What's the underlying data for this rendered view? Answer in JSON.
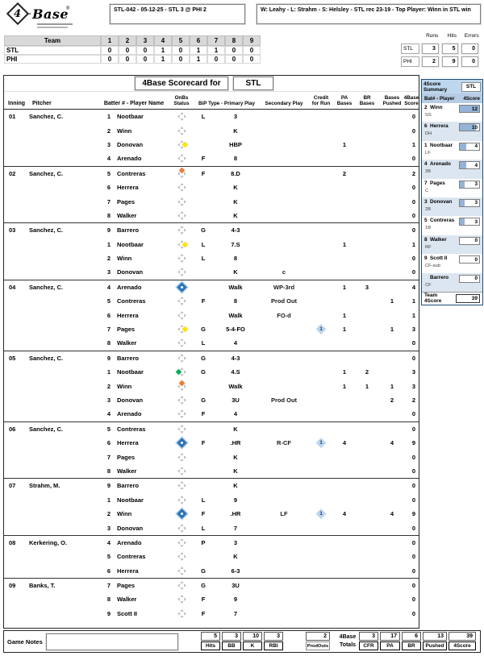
{
  "header": {
    "logo": {
      "number": "4",
      "word": "Base",
      "reg": "®"
    },
    "game_info": "STL-042 - 05-12-25 - STL 3 @ PHI 2",
    "result_info": "W: Leahy - L: Strahm - S: Helsley - STL rec 23-19 - Top Player: Winn in STL win"
  },
  "linescore": {
    "team_col": "Team",
    "innings": [
      "1",
      "2",
      "3",
      "4",
      "5",
      "6",
      "7",
      "8",
      "9"
    ],
    "rows": [
      {
        "team": "STL",
        "scores": [
          "0",
          "0",
          "0",
          "1",
          "0",
          "1",
          "1",
          "0",
          "0"
        ]
      },
      {
        "team": "PHI",
        "scores": [
          "0",
          "0",
          "0",
          "1",
          "0",
          "1",
          "0",
          "0",
          "0"
        ]
      }
    ]
  },
  "rhe": {
    "headers": [
      "Runs",
      "Hits",
      "Errors"
    ],
    "rows": [
      {
        "team": "STL",
        "values": [
          "3",
          "5",
          "0"
        ]
      },
      {
        "team": "PHI",
        "values": [
          "2",
          "9",
          "0"
        ]
      }
    ]
  },
  "scorecard": {
    "title": "4Base Scorecard for",
    "team": "STL",
    "columns": {
      "inning": "Inning",
      "pitcher": "Pitcher",
      "batter": "Batter # - Player Name",
      "onbs": "OnBs Status",
      "bip": "BiP Type - Primary Play",
      "secondary": "Secondary Play",
      "cfr": "Credit\nfor Run",
      "pa": "PA\nBases",
      "br": "BR\nBases",
      "pushed": "Bases\nPushed",
      "score": "4Base\nScore"
    },
    "innings": [
      {
        "inning": "01",
        "pitcher": "Sanchez, C.",
        "batters": [
          {
            "num": "1",
            "name": "Nootbaar",
            "onbs": "none",
            "bip": "L",
            "primary": "3",
            "secondary": "",
            "cfr": "",
            "pa": "",
            "br": "",
            "pushed": "",
            "score": "0"
          },
          {
            "num": "2",
            "name": "Winn",
            "onbs": "none",
            "bip": "",
            "primary": "K",
            "secondary": "",
            "cfr": "",
            "pa": "",
            "br": "",
            "pushed": "",
            "score": "0"
          },
          {
            "num": "3",
            "name": "Donovan",
            "onbs": "first",
            "bip": "",
            "primary": "HBP",
            "secondary": "",
            "cfr": "",
            "pa": "1",
            "br": "",
            "pushed": "",
            "score": "1"
          },
          {
            "num": "4",
            "name": "Arenado",
            "onbs": "none",
            "bip": "F",
            "primary": "8",
            "secondary": "",
            "cfr": "",
            "pa": "",
            "br": "",
            "pushed": "",
            "score": "0"
          }
        ]
      },
      {
        "inning": "02",
        "pitcher": "Sanchez, C.",
        "batters": [
          {
            "num": "5",
            "name": "Contreras",
            "onbs": "second",
            "bip": "F",
            "primary": "8.D",
            "secondary": "",
            "cfr": "",
            "pa": "2",
            "br": "",
            "pushed": "",
            "score": "2"
          },
          {
            "num": "6",
            "name": "Herrera",
            "onbs": "none",
            "bip": "",
            "primary": "K",
            "secondary": "",
            "cfr": "",
            "pa": "",
            "br": "",
            "pushed": "",
            "score": "0"
          },
          {
            "num": "7",
            "name": "Pages",
            "onbs": "none",
            "bip": "",
            "primary": "K",
            "secondary": "",
            "cfr": "",
            "pa": "",
            "br": "",
            "pushed": "",
            "score": "0"
          },
          {
            "num": "8",
            "name": "Walker",
            "onbs": "none",
            "bip": "",
            "primary": "K",
            "secondary": "",
            "cfr": "",
            "pa": "",
            "br": "",
            "pushed": "",
            "score": "0"
          }
        ]
      },
      {
        "inning": "03",
        "pitcher": "Sanchez, C.",
        "batters": [
          {
            "num": "9",
            "name": "Barrero",
            "onbs": "none",
            "bip": "G",
            "primary": "4-3",
            "secondary": "",
            "cfr": "",
            "pa": "",
            "br": "",
            "pushed": "",
            "score": "0"
          },
          {
            "num": "1",
            "name": "Nootbaar",
            "onbs": "first",
            "bip": "L",
            "primary": "7.S",
            "secondary": "",
            "cfr": "",
            "pa": "1",
            "br": "",
            "pushed": "",
            "score": "1"
          },
          {
            "num": "2",
            "name": "Winn",
            "onbs": "none",
            "bip": "L",
            "primary": "8",
            "secondary": "",
            "cfr": "",
            "pa": "",
            "br": "",
            "pushed": "",
            "score": "0"
          },
          {
            "num": "3",
            "name": "Donovan",
            "onbs": "none",
            "bip": "",
            "primary": "K",
            "secondary": "c",
            "cfr": "",
            "pa": "",
            "br": "",
            "pushed": "",
            "score": "0"
          }
        ]
      },
      {
        "inning": "04",
        "pitcher": "Sanchez, C.",
        "batters": [
          {
            "num": "4",
            "name": "Arenado",
            "onbs": "scored",
            "bip": "",
            "primary": "Walk",
            "secondary": "WP-3rd",
            "cfr": "",
            "pa": "1",
            "br": "3",
            "pushed": "",
            "score": "4"
          },
          {
            "num": "5",
            "name": "Contreras",
            "onbs": "none",
            "bip": "F",
            "primary": "8",
            "secondary": "Prod Out",
            "cfr": "",
            "pa": "",
            "br": "",
            "pushed": "1",
            "score": "1"
          },
          {
            "num": "6",
            "name": "Herrera",
            "onbs": "none",
            "bip": "",
            "primary": "Walk",
            "secondary": "FO-d",
            "cfr": "",
            "pa": "1",
            "br": "",
            "pushed": "",
            "score": "1"
          },
          {
            "num": "7",
            "name": "Pages",
            "onbs": "first",
            "bip": "G",
            "primary": "5-4-FO",
            "secondary": "",
            "cfr": "1",
            "pa": "1",
            "br": "",
            "pushed": "1",
            "score": "3"
          },
          {
            "num": "8",
            "name": "Walker",
            "onbs": "none",
            "bip": "L",
            "primary": "4",
            "secondary": "",
            "cfr": "",
            "pa": "",
            "br": "",
            "pushed": "",
            "score": "0"
          }
        ]
      },
      {
        "inning": "05",
        "pitcher": "Sanchez, C.",
        "batters": [
          {
            "num": "9",
            "name": "Barrero",
            "onbs": "none",
            "bip": "G",
            "primary": "4-3",
            "secondary": "",
            "cfr": "",
            "pa": "",
            "br": "",
            "pushed": "",
            "score": "0"
          },
          {
            "num": "1",
            "name": "Nootbaar",
            "onbs": "third",
            "bip": "G",
            "primary": "4.S",
            "secondary": "",
            "cfr": "",
            "pa": "1",
            "br": "2",
            "pushed": "",
            "score": "3"
          },
          {
            "num": "2",
            "name": "Winn",
            "onbs": "second",
            "bip": "",
            "primary": "Walk",
            "secondary": "",
            "cfr": "",
            "pa": "1",
            "br": "1",
            "pushed": "1",
            "score": "3"
          },
          {
            "num": "3",
            "name": "Donovan",
            "onbs": "none",
            "bip": "G",
            "primary": "3U",
            "secondary": "Prod Out",
            "cfr": "",
            "pa": "",
            "br": "",
            "pushed": "2",
            "score": "2"
          },
          {
            "num": "4",
            "name": "Arenado",
            "onbs": "none",
            "bip": "F",
            "primary": "4",
            "secondary": "",
            "cfr": "",
            "pa": "",
            "br": "",
            "pushed": "",
            "score": "0"
          }
        ]
      },
      {
        "inning": "06",
        "pitcher": "Sanchez, C.",
        "batters": [
          {
            "num": "5",
            "name": "Contreras",
            "onbs": "none",
            "bip": "",
            "primary": "K",
            "secondary": "",
            "cfr": "",
            "pa": "",
            "br": "",
            "pushed": "",
            "score": "0"
          },
          {
            "num": "6",
            "name": "Herrera",
            "onbs": "scored",
            "bip": "F",
            "primary": ".HR",
            "secondary": "R-CF",
            "cfr": "1",
            "pa": "4",
            "br": "",
            "pushed": "4",
            "score": "9"
          },
          {
            "num": "7",
            "name": "Pages",
            "onbs": "none",
            "bip": "",
            "primary": "K",
            "secondary": "",
            "cfr": "",
            "pa": "",
            "br": "",
            "pushed": "",
            "score": "0"
          },
          {
            "num": "8",
            "name": "Walker",
            "onbs": "none",
            "bip": "",
            "primary": "K",
            "secondary": "",
            "cfr": "",
            "pa": "",
            "br": "",
            "pushed": "",
            "score": "0"
          }
        ]
      },
      {
        "inning": "07",
        "pitcher": "Strahm, M.",
        "batters": [
          {
            "num": "9",
            "name": "Barrero",
            "onbs": "none",
            "bip": "",
            "primary": "K",
            "secondary": "",
            "cfr": "",
            "pa": "",
            "br": "",
            "pushed": "",
            "score": "0"
          },
          {
            "num": "1",
            "name": "Nootbaar",
            "onbs": "none",
            "bip": "L",
            "primary": "9",
            "secondary": "",
            "cfr": "",
            "pa": "",
            "br": "",
            "pushed": "",
            "score": "0"
          },
          {
            "num": "2",
            "name": "Winn",
            "onbs": "scored",
            "bip": "F",
            "primary": ".HR",
            "secondary": "LF",
            "cfr": "1",
            "pa": "4",
            "br": "",
            "pushed": "4",
            "score": "9"
          },
          {
            "num": "3",
            "name": "Donovan",
            "onbs": "none",
            "bip": "L",
            "primary": "7",
            "secondary": "",
            "cfr": "",
            "pa": "",
            "br": "",
            "pushed": "",
            "score": "0"
          }
        ]
      },
      {
        "inning": "08",
        "pitcher": "Kerkering, O.",
        "batters": [
          {
            "num": "4",
            "name": "Arenado",
            "onbs": "none",
            "bip": "P",
            "primary": "3",
            "secondary": "",
            "cfr": "",
            "pa": "",
            "br": "",
            "pushed": "",
            "score": "0"
          },
          {
            "num": "5",
            "name": "Contreras",
            "onbs": "none",
            "bip": "",
            "primary": "K",
            "secondary": "",
            "cfr": "",
            "pa": "",
            "br": "",
            "pushed": "",
            "score": "0"
          },
          {
            "num": "6",
            "name": "Herrera",
            "onbs": "none",
            "bip": "G",
            "primary": "6-3",
            "secondary": "",
            "cfr": "",
            "pa": "",
            "br": "",
            "pushed": "",
            "score": "0"
          }
        ]
      },
      {
        "inning": "09",
        "pitcher": "Banks, T.",
        "batters": [
          {
            "num": "7",
            "name": "Pages",
            "onbs": "none",
            "bip": "G",
            "primary": "3U",
            "secondary": "",
            "cfr": "",
            "pa": "",
            "br": "",
            "pushed": "",
            "score": "0"
          },
          {
            "num": "8",
            "name": "Walker",
            "onbs": "none",
            "bip": "F",
            "primary": "9",
            "secondary": "",
            "cfr": "",
            "pa": "",
            "br": "",
            "pushed": "",
            "score": "0"
          },
          {
            "num": "9",
            "name": "Scott II",
            "onbs": "none",
            "bip": "F",
            "primary": "7",
            "secondary": "",
            "cfr": "",
            "pa": "",
            "br": "",
            "pushed": "",
            "score": "0"
          }
        ]
      }
    ]
  },
  "sidebar": {
    "title": "4Score Summary",
    "team": "STL",
    "col_player": "Bat# - Player",
    "col_score": "4Score",
    "players": [
      {
        "num": "2",
        "name": "Winn",
        "pos": "SS",
        "score": 12
      },
      {
        "num": "6",
        "name": "Herrera",
        "pos": "DH",
        "score": 10
      },
      {
        "num": "1",
        "name": "Nootbaar",
        "pos": "LF",
        "score": 4
      },
      {
        "num": "4",
        "name": "Arenado",
        "pos": "3B",
        "score": 4
      },
      {
        "num": "7",
        "name": "Pages",
        "pos": "C",
        "score": 3
      },
      {
        "num": "3",
        "name": "Donovan",
        "pos": "2B",
        "score": 3
      },
      {
        "num": "5",
        "name": "Contreras",
        "pos": "1B",
        "score": 3
      },
      {
        "num": "8",
        "name": "Walker",
        "pos": "RF",
        "score": 0
      },
      {
        "num": "9",
        "name": "Scott II",
        "pos": "CF-sub",
        "score": 0
      },
      {
        "num": "",
        "name": "Barrero",
        "pos": "CF",
        "score": 0
      }
    ],
    "team_total_label": "Team 4Score",
    "team_total": "39"
  },
  "footer": {
    "notes_label": "Game Notes",
    "stats": [
      {
        "value": "5",
        "label": "Hits"
      },
      {
        "value": "3",
        "label": "BB"
      },
      {
        "value": "10",
        "label": "K"
      },
      {
        "value": "3",
        "label": "RBI"
      }
    ],
    "prodouts": {
      "value": "2",
      "label": "ProdOuts"
    },
    "totals_label": "4Base\nTotals",
    "totals": [
      {
        "value": "3",
        "label": "CFR"
      },
      {
        "value": "17",
        "label": "PA"
      },
      {
        "value": "6",
        "label": "BR"
      },
      {
        "value": "13",
        "label": "Pushed"
      },
      {
        "value": "39",
        "label": "4Score"
      }
    ]
  }
}
